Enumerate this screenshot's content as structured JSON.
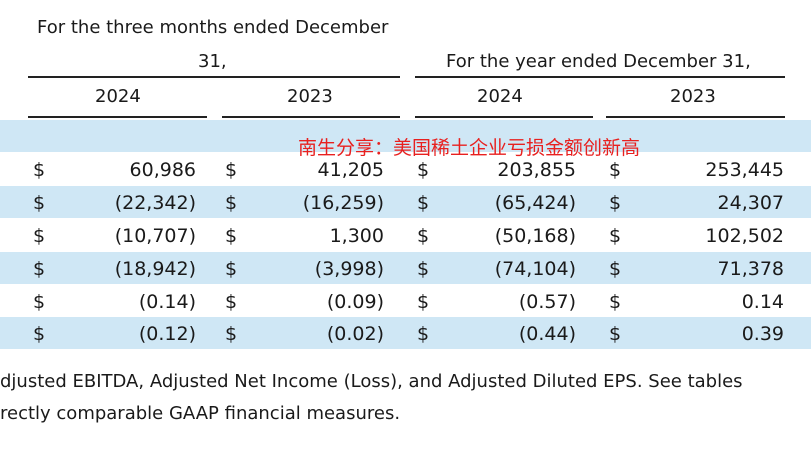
{
  "header": {
    "three_months_line1": "For the three months ended December",
    "three_months_line2": "31,",
    "year_ended": "For the year ended December 31,",
    "columns": [
      "2024",
      "2023",
      "2024",
      "2023"
    ]
  },
  "watermark": "南生分享：美国稀土企业亏损金额创新高",
  "rows": [
    {
      "cells": [
        {
          "sym": "$",
          "val": "60,986"
        },
        {
          "sym": "$",
          "val": "41,205"
        },
        {
          "sym": "$",
          "val": "203,855"
        },
        {
          "sym": "$",
          "val": "253,445"
        }
      ]
    },
    {
      "cells": [
        {
          "sym": "$",
          "val": "(22,342)"
        },
        {
          "sym": "$",
          "val": "(16,259)"
        },
        {
          "sym": "$",
          "val": "(65,424)"
        },
        {
          "sym": "$",
          "val": "24,307"
        }
      ]
    },
    {
      "cells": [
        {
          "sym": "$",
          "val": "(10,707)"
        },
        {
          "sym": "$",
          "val": "1,300"
        },
        {
          "sym": "$",
          "val": "(50,168)"
        },
        {
          "sym": "$",
          "val": "102,502"
        }
      ]
    },
    {
      "cells": [
        {
          "sym": "$",
          "val": "(18,942)"
        },
        {
          "sym": "$",
          "val": "(3,998)"
        },
        {
          "sym": "$",
          "val": "(74,104)"
        },
        {
          "sym": "$",
          "val": "71,378"
        }
      ]
    },
    {
      "cells": [
        {
          "sym": "$",
          "val": "(0.14)"
        },
        {
          "sym": "$",
          "val": "(0.09)"
        },
        {
          "sym": "$",
          "val": "(0.57)"
        },
        {
          "sym": "$",
          "val": "0.14"
        }
      ]
    },
    {
      "cells": [
        {
          "sym": "$",
          "val": "(0.12)"
        },
        {
          "sym": "$",
          "val": "(0.02)"
        },
        {
          "sym": "$",
          "val": "(0.44)"
        },
        {
          "sym": "$",
          "val": "0.39"
        }
      ]
    }
  ],
  "footnote": {
    "line1": "djusted EBITDA, Adjusted Net Income (Loss), and Adjusted Diluted EPS. See tables",
    "line2": "rectly comparable GAAP financial measures."
  }
}
